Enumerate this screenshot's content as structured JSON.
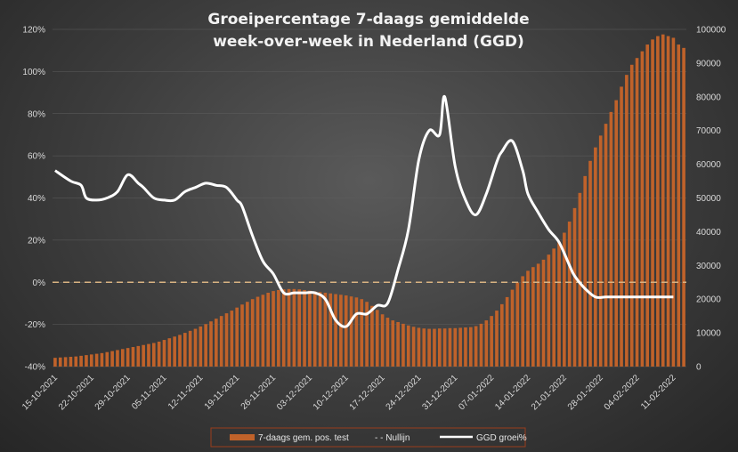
{
  "chart_data": {
    "type": "bar+line",
    "title_line1": "Groeipercentage 7-daags gemiddelde",
    "title_line2": "week-over-week in Nederland (GGD)",
    "y_left": {
      "min": -40,
      "max": 120,
      "step": 20,
      "suffix": "%"
    },
    "y_right": {
      "min": 0,
      "max": 100000,
      "step": 10000
    },
    "x_tick_labels": [
      "15-10-2021",
      "22-10-2021",
      "29-10-2021",
      "05-11-2021",
      "12-11-2021",
      "19-11-2021",
      "26-11-2021",
      "03-12-2021",
      "10-12-2021",
      "17-12-2021",
      "24-12-2021",
      "31-12-2021",
      "07-01-2022",
      "14-01-2022",
      "21-01-2022",
      "28-01-2022",
      "04-02-2022",
      "11-02-2022"
    ],
    "series": [
      {
        "name": "7-daags gem. pos. test",
        "type": "bar",
        "axis": "right",
        "color": "#c0622a",
        "values": [
          2600,
          2700,
          2800,
          2900,
          3000,
          3200,
          3400,
          3600,
          3800,
          4000,
          4300,
          4600,
          4900,
          5200,
          5500,
          5800,
          6100,
          6400,
          6700,
          7000,
          7400,
          7900,
          8400,
          8900,
          9400,
          10000,
          10600,
          11200,
          11900,
          12600,
          13400,
          14200,
          15000,
          15800,
          16600,
          17500,
          18400,
          19200,
          20000,
          20700,
          21300,
          21900,
          22400,
          22700,
          22900,
          23000,
          23000,
          22900,
          22700,
          22500,
          22300,
          22100,
          21900,
          21700,
          21500,
          21300,
          21100,
          20800,
          20500,
          20000,
          19200,
          18000,
          16800,
          15500,
          14500,
          13700,
          13200,
          12700,
          12200,
          11800,
          11500,
          11300,
          11200,
          11200,
          11300,
          11300,
          11400,
          11400,
          11500,
          11600,
          11700,
          12000,
          12700,
          13700,
          15000,
          16600,
          18500,
          20600,
          22800,
          24900,
          26800,
          28400,
          29500,
          30500,
          31700,
          33200,
          35000,
          37000,
          39700,
          43000,
          47000,
          51500,
          56500,
          61000,
          65000,
          68500,
          72000,
          75500,
          79000,
          83000,
          86500,
          89500,
          91500,
          93500,
          95500,
          97000,
          98000,
          98500,
          98000,
          97500,
          95500,
          94500
        ]
      },
      {
        "name": "- - Nullijn",
        "type": "line",
        "axis": "left",
        "color": "#d9b382",
        "dashed": true,
        "values": [
          0,
          0
        ]
      },
      {
        "name": "GGD groei%",
        "type": "line",
        "axis": "left",
        "color": "#ffffff",
        "x": [
          0,
          3,
          5,
          6,
          8,
          10,
          12,
          14,
          16,
          17,
          19,
          21,
          23,
          25,
          27,
          29,
          31,
          33,
          35,
          36,
          38,
          40,
          42,
          44,
          46,
          48,
          50,
          52,
          54,
          56,
          58,
          60,
          62,
          64,
          66,
          68,
          70,
          72,
          74,
          75,
          77,
          79,
          81,
          83,
          85,
          86,
          88,
          90,
          91,
          93,
          95,
          97,
          99,
          100,
          102,
          104,
          106,
          108,
          110,
          112,
          114,
          116,
          117,
          119
        ],
        "values": [
          53,
          48,
          46,
          40,
          39,
          40,
          43,
          51,
          47,
          45,
          40,
          39,
          39,
          43,
          45,
          47,
          46,
          45,
          39,
          36,
          22,
          10,
          4,
          -5,
          -5,
          -5,
          -5,
          -8,
          -18,
          -21,
          -15,
          -15,
          -11,
          -10,
          6,
          25,
          58,
          72,
          70,
          88,
          55,
          39,
          32,
          42,
          57,
          62,
          67,
          53,
          42,
          33,
          25,
          19,
          8,
          3,
          -3,
          -7,
          -7,
          -7,
          -7,
          -7,
          -7,
          -7,
          -7,
          -7
        ]
      }
    ]
  },
  "legend": {
    "bars_label": "7-daags gem. pos. test",
    "zero_label": "- - Nullijn",
    "growth_label": "GGD groei%"
  }
}
